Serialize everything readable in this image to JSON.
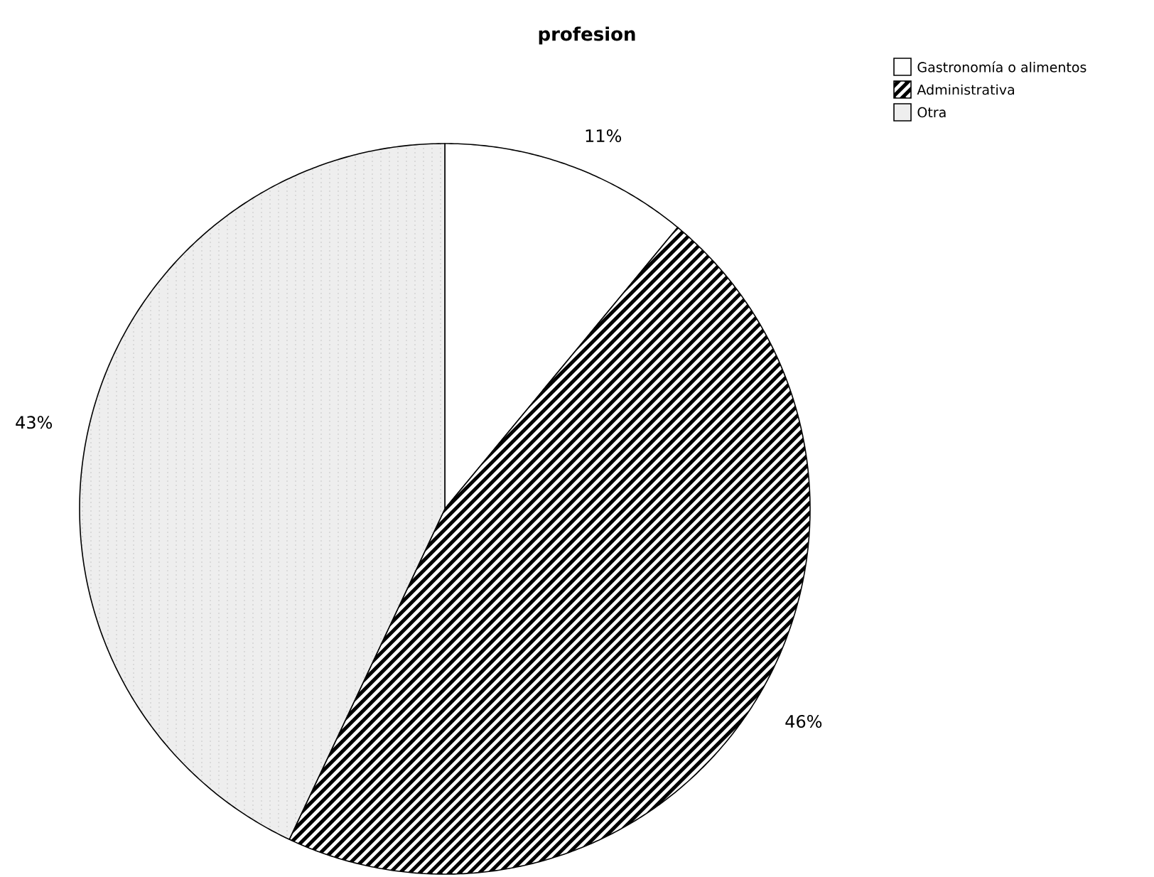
{
  "chart_data": {
    "type": "pie",
    "title": "profesion",
    "categories": [
      "Gastronomía o alimentos",
      "Administrativa",
      "Otra"
    ],
    "values": [
      11,
      46,
      43
    ],
    "value_labels": [
      "11%",
      "46%",
      "43%"
    ],
    "colors": [
      "#ffffff",
      "#000000",
      "#eeeeee"
    ],
    "legend": "top right"
  }
}
